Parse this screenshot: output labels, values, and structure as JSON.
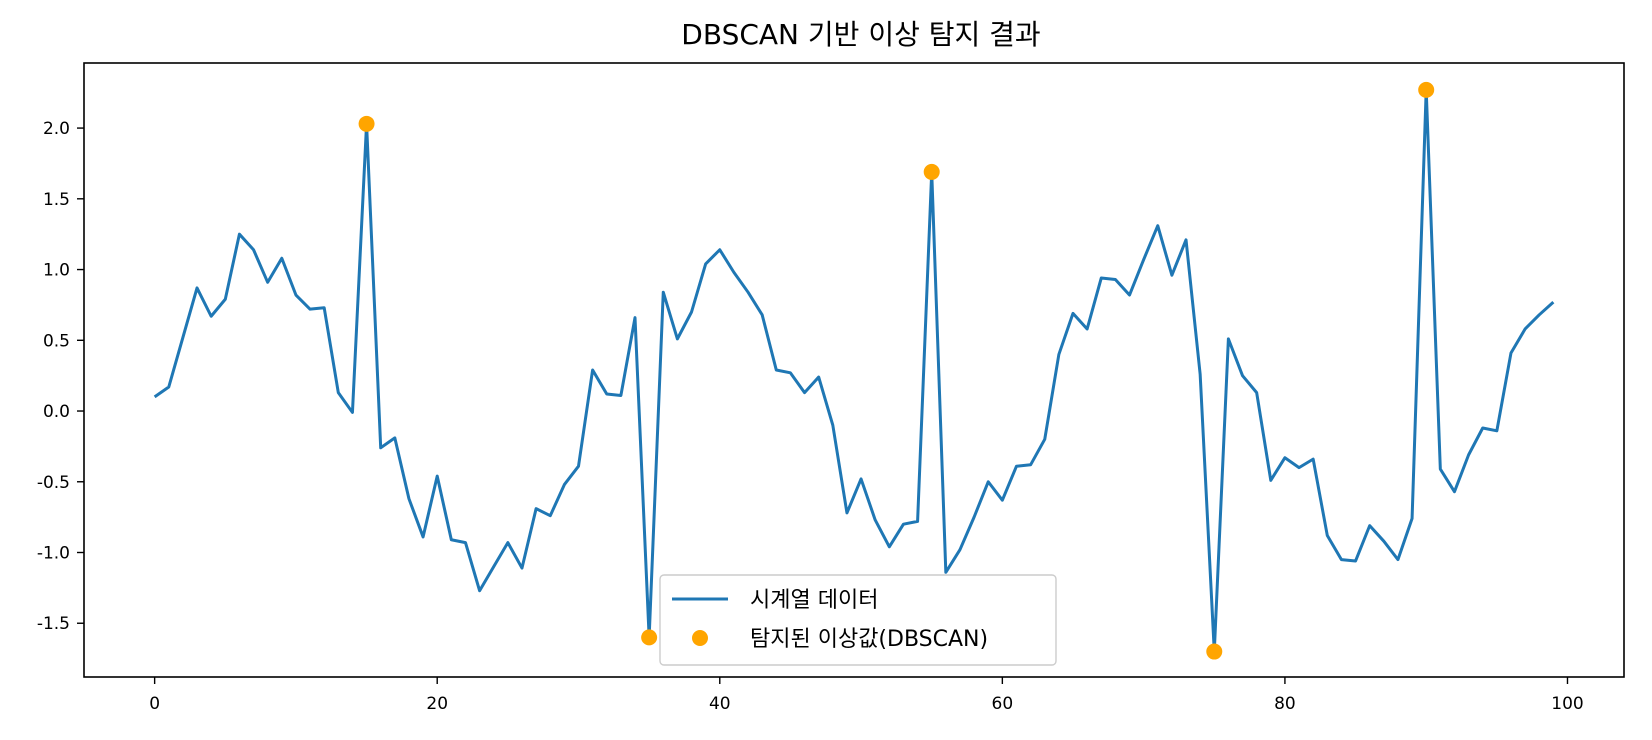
{
  "chart_data": {
    "type": "line",
    "title": "DBSCAN 기반 이상 탐지 결과",
    "xlabel": "",
    "ylabel": "",
    "xlim": [
      -5,
      104
    ],
    "ylim": [
      -1.88,
      2.46
    ],
    "x_ticks": [
      0,
      20,
      40,
      60,
      80,
      100
    ],
    "y_ticks": [
      -1.5,
      -1.0,
      -0.5,
      0.0,
      0.5,
      1.0,
      1.5,
      2.0
    ],
    "x_tick_labels": [
      "0",
      "20",
      "40",
      "60",
      "80",
      "100"
    ],
    "y_tick_labels": [
      "-1.5",
      "-1.0",
      "-0.5",
      "0.0",
      "0.5",
      "1.0",
      "1.5",
      "2.0"
    ],
    "grid": false,
    "legend_position": "lower-center",
    "series": [
      {
        "name": "시계열 데이터",
        "kind": "line",
        "color": "#1f77b4",
        "x": [
          0,
          1,
          2,
          3,
          4,
          5,
          6,
          7,
          8,
          9,
          10,
          11,
          12,
          13,
          14,
          15,
          16,
          17,
          18,
          19,
          20,
          21,
          22,
          23,
          24,
          25,
          26,
          27,
          28,
          29,
          30,
          31,
          32,
          33,
          34,
          35,
          36,
          37,
          38,
          39,
          40,
          41,
          42,
          43,
          44,
          45,
          46,
          47,
          48,
          49,
          50,
          51,
          52,
          53,
          54,
          55,
          56,
          57,
          58,
          59,
          60,
          61,
          62,
          63,
          64,
          65,
          66,
          67,
          68,
          69,
          70,
          71,
          72,
          73,
          74,
          75,
          76,
          77,
          78,
          79,
          80,
          81,
          82,
          83,
          84,
          85,
          86,
          87,
          88,
          89,
          90,
          91,
          92,
          93,
          94,
          95,
          96,
          97,
          98,
          99
        ],
        "values": [
          0.1,
          0.17,
          0.52,
          0.87,
          0.67,
          0.79,
          1.25,
          1.14,
          0.91,
          1.08,
          0.82,
          0.72,
          0.73,
          0.13,
          -0.01,
          2.03,
          -0.26,
          -0.19,
          -0.62,
          -0.89,
          -0.46,
          -0.91,
          -0.93,
          -1.27,
          -1.1,
          -0.93,
          -1.11,
          -0.69,
          -0.74,
          -0.52,
          -0.39,
          0.29,
          0.12,
          0.11,
          0.66,
          -1.6,
          0.84,
          0.51,
          0.7,
          1.04,
          1.14,
          0.98,
          0.84,
          0.68,
          0.29,
          0.27,
          0.13,
          0.24,
          -0.1,
          -0.72,
          -0.48,
          -0.77,
          -0.96,
          -0.8,
          -0.78,
          1.69,
          -1.14,
          -0.98,
          -0.75,
          -0.5,
          -0.63,
          -0.39,
          -0.38,
          -0.2,
          0.4,
          0.69,
          0.58,
          0.94,
          0.93,
          0.82,
          1.07,
          1.31,
          0.96,
          1.21,
          0.26,
          -1.7,
          0.51,
          0.25,
          0.13,
          -0.49,
          -0.33,
          -0.4,
          -0.34,
          -0.88,
          -1.05,
          -1.06,
          -0.81,
          -0.92,
          -1.05,
          -0.76,
          2.27,
          -0.41,
          -0.57,
          -0.31,
          -0.12,
          -0.14,
          0.41,
          0.58,
          0.68,
          0.77
        ]
      },
      {
        "name": "탐지된 이상값(DBSCAN)",
        "kind": "scatter",
        "color": "#ffa500",
        "x": [
          15,
          35,
          55,
          75,
          90
        ],
        "values": [
          2.03,
          -1.6,
          1.69,
          -1.7,
          2.27
        ]
      }
    ]
  }
}
